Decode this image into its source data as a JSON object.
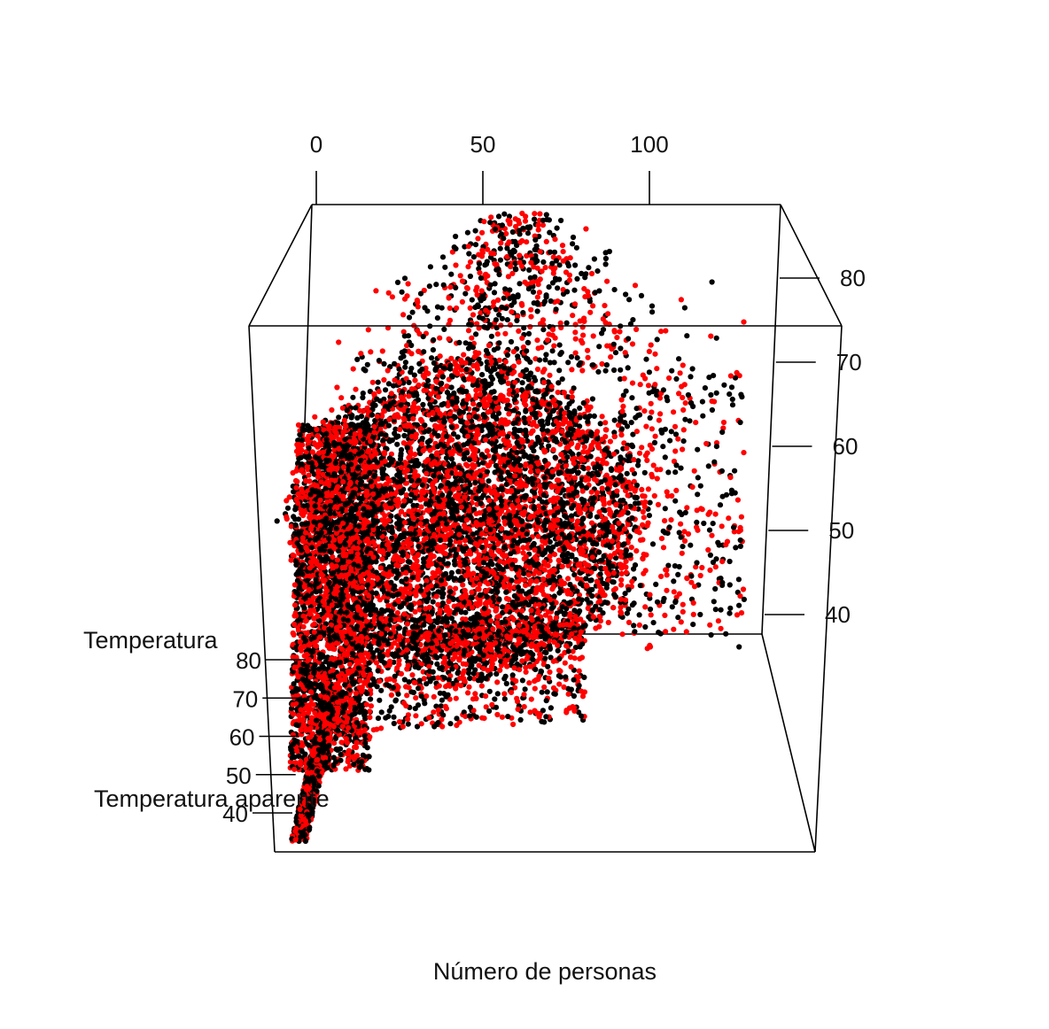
{
  "chart_data": {
    "type": "scatter",
    "subtype": "3d-scatter",
    "title": "",
    "axes": {
      "x": {
        "label": "Número de personas",
        "range": [
          0,
          140
        ],
        "ticks": [
          "0",
          "50",
          "100"
        ]
      },
      "y": {
        "label": "Temperatura",
        "range": [
          38,
          86
        ],
        "ticks": [
          "40",
          "50",
          "60",
          "70",
          "80"
        ]
      },
      "z": {
        "label": "Temperatura aparente",
        "range": [
          38,
          86
        ],
        "ticks": [
          "40",
          "50",
          "60",
          "70",
          "80"
        ]
      }
    },
    "series": [
      {
        "color": "#000000",
        "approx_points": 6000
      },
      {
        "color": "#ff0000",
        "approx_points": 6000
      }
    ],
    "point_summary": {
      "x_range": [
        0,
        120
      ],
      "temperature_range": [
        38,
        85
      ],
      "apparent_temperature_range": [
        38,
        85
      ],
      "dense_core": {
        "x": [
          10,
          80
        ],
        "temperature": [
          50,
          70
        ]
      }
    },
    "grid": false,
    "legend": "none",
    "box": true
  }
}
